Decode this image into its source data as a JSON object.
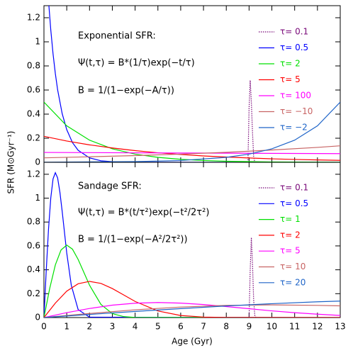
{
  "axis_labels": {
    "x": "Age (Gyr)",
    "y": "SFR (M⊙Gyr⁻¹)"
  },
  "chart_data": [
    {
      "type": "line",
      "annotations": [
        "Exponential SFR:",
        "Ψ(t,τ) = B*(1/τ)exp(−t/τ)",
        "B = 1/(1−exp(−A/τ))"
      ],
      "xlim": [
        0,
        13
      ],
      "ylim": [
        0,
        1.3
      ],
      "xticks": [
        0,
        1,
        2,
        3,
        4,
        5,
        6,
        7,
        8,
        9,
        10,
        11,
        12,
        13
      ],
      "show_xtick_labels": false,
      "yticks": [
        0,
        0.2,
        0.4,
        0.6,
        0.8,
        1,
        1.2
      ],
      "series": [
        {
          "name": "τ= 0.1",
          "color": "#7a0a7a",
          "linestyle": "dotted",
          "x": [
            8.95,
            9.0,
            9.05,
            9.1,
            9.15,
            9.2,
            9.25
          ],
          "values": [
            0,
            0.45,
            0.68,
            0.5,
            0.25,
            0.05,
            0
          ]
        },
        {
          "name": "τ= 0.5",
          "color": "#0000ff",
          "x": [
            0.2,
            0.3,
            0.4,
            0.5,
            0.6,
            0.8,
            1.0,
            1.25,
            1.5,
            2,
            2.5,
            3,
            4,
            13
          ],
          "values": [
            1.341,
            1.098,
            0.899,
            0.736,
            0.602,
            0.404,
            0.271,
            0.164,
            0.1,
            0.037,
            0.013,
            0.005,
            0.001,
            0
          ]
        },
        {
          "name": "τ= 2",
          "color": "#00e000",
          "x": [
            0,
            1,
            2,
            3,
            4,
            5,
            6,
            7,
            8,
            10,
            13
          ],
          "values": [
            0.5,
            0.303,
            0.184,
            0.112,
            0.068,
            0.041,
            0.025,
            0.015,
            0.009,
            0.003,
            0.001
          ]
        },
        {
          "name": "τ= 5",
          "color": "#ff0000",
          "x": [
            0,
            1,
            2,
            3,
            4,
            5,
            6,
            7,
            8,
            9,
            10,
            11,
            12,
            13
          ],
          "values": [
            0.216,
            0.177,
            0.145,
            0.119,
            0.097,
            0.079,
            0.065,
            0.053,
            0.044,
            0.036,
            0.029,
            0.024,
            0.02,
            0.016
          ]
        },
        {
          "name": "τ= 100",
          "color": "#ff00ff",
          "x": [
            0,
            6.5,
            13
          ],
          "values": [
            0.082,
            0.077,
            0.072
          ]
        },
        {
          "name": "τ= −10",
          "color": "#c86464",
          "x": [
            0,
            2,
            4,
            6,
            8,
            10,
            12,
            13
          ],
          "values": [
            0.037,
            0.046,
            0.056,
            0.068,
            0.083,
            0.102,
            0.124,
            0.137
          ]
        },
        {
          "name": "τ= −2",
          "color": "#1e64c8",
          "x": [
            0,
            4,
            6,
            8,
            9,
            10,
            11,
            12,
            13
          ],
          "values": [
            0.001,
            0.006,
            0.015,
            0.041,
            0.068,
            0.112,
            0.184,
            0.303,
            0.5
          ]
        }
      ]
    },
    {
      "type": "line",
      "annotations": [
        "Sandage SFR:",
        "Ψ(t,τ) = B*(t/τ²)exp(−t²/2τ²)",
        "B = 1/(1−exp(−A²/2τ²))"
      ],
      "xlim": [
        0,
        13
      ],
      "ylim": [
        0,
        1.3
      ],
      "xticks": [
        0,
        1,
        2,
        3,
        4,
        5,
        6,
        7,
        8,
        9,
        10,
        11,
        12,
        13
      ],
      "show_xtick_labels": true,
      "yticks": [
        0,
        0.2,
        0.4,
        0.6,
        0.8,
        1,
        1.2
      ],
      "series": [
        {
          "name": "τ= 0.1",
          "color": "#7a0a7a",
          "linestyle": "dotted",
          "x": [
            9.0,
            9.05,
            9.1,
            9.15,
            9.2,
            9.25,
            9.3
          ],
          "values": [
            0,
            0.4,
            0.67,
            0.45,
            0.15,
            0.02,
            0
          ]
        },
        {
          "name": "τ= 0.5",
          "color": "#0000ff",
          "x": [
            0,
            0.1,
            0.2,
            0.3,
            0.4,
            0.5,
            0.6,
            0.7,
            0.8,
            1.0,
            1.2,
            1.5,
            2,
            13
          ],
          "values": [
            0,
            0.392,
            0.739,
            1.002,
            1.162,
            1.213,
            1.169,
            1.05,
            0.889,
            0.541,
            0.27,
            0.067,
            0.003,
            0
          ]
        },
        {
          "name": "τ= 1",
          "color": "#00e000",
          "x": [
            0,
            0.25,
            0.5,
            0.75,
            1,
            1.25,
            1.5,
            2,
            2.5,
            3,
            3.5,
            4,
            13
          ],
          "values": [
            0,
            0.242,
            0.441,
            0.566,
            0.607,
            0.573,
            0.487,
            0.271,
            0.11,
            0.033,
            0.008,
            0.001,
            0
          ]
        },
        {
          "name": "τ= 2",
          "color": "#ff0000",
          "x": [
            0,
            0.5,
            1,
            1.5,
            2,
            2.5,
            3,
            3.5,
            4,
            5,
            6,
            7,
            8,
            13
          ],
          "values": [
            0,
            0.121,
            0.221,
            0.283,
            0.303,
            0.286,
            0.243,
            0.189,
            0.135,
            0.055,
            0.017,
            0.004,
            0.001,
            0
          ]
        },
        {
          "name": "τ= 5",
          "color": "#ff00ff",
          "x": [
            0,
            1,
            2,
            3,
            4,
            5,
            6,
            7,
            8,
            9,
            10,
            11,
            12,
            13
          ],
          "values": [
            0,
            0.041,
            0.076,
            0.104,
            0.12,
            0.126,
            0.121,
            0.109,
            0.092,
            0.074,
            0.056,
            0.041,
            0.028,
            0.018
          ]
        },
        {
          "name": "τ= 10",
          "color": "#c86464",
          "x": [
            0,
            2,
            4,
            6,
            8,
            10,
            12,
            13
          ],
          "values": [
            0,
            0.034,
            0.065,
            0.088,
            0.102,
            0.106,
            0.102,
            0.098
          ]
        },
        {
          "name": "τ= 20",
          "color": "#1e64c8",
          "x": [
            0,
            2,
            4,
            6,
            8,
            10,
            12,
            13
          ],
          "values": [
            0,
            0.026,
            0.051,
            0.075,
            0.097,
            0.116,
            0.132,
            0.138
          ]
        }
      ]
    }
  ]
}
